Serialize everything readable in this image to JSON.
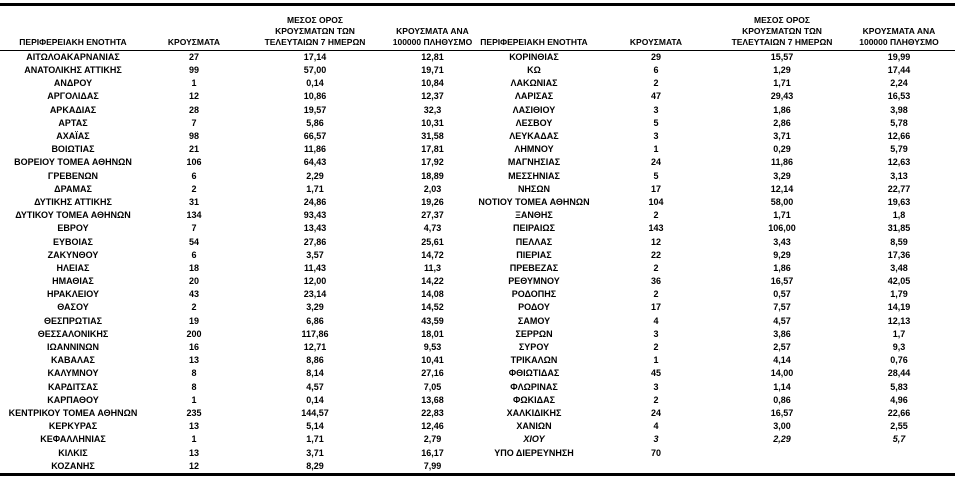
{
  "table": {
    "headers": [
      "ΠΕΡΙΦΕΡΕΙΑΚΗ ΕΝΟΤΗΤΑ",
      "ΚΡΟΥΣΜΑΤΑ",
      "ΜΕΣΟΣ ΟΡΟΣ\nΚΡΟΥΣΜΑΤΩΝ ΤΩΝ\nΤΕΛΕΥΤΑΙΩΝ 7 ΗΜΕΡΩΝ",
      "ΚΡΟΥΣΜΑΤΑ ΑΝΑ\n100000 ΠΛΗΘΥΣΜΟ"
    ],
    "left_rows": [
      {
        "cells": [
          "ΑΙΤΩΛΟΑΚΑΡΝΑΝΙΑΣ",
          "27",
          "17,14",
          "12,81"
        ]
      },
      {
        "cells": [
          "ΑΝΑΤΟΛΙΚΗΣ ΑΤΤΙΚΗΣ",
          "99",
          "57,00",
          "19,71"
        ]
      },
      {
        "cells": [
          "ΑΝΔΡΟΥ",
          "1",
          "0,14",
          "10,84"
        ]
      },
      {
        "cells": [
          "ΑΡΓΟΛΙΔΑΣ",
          "12",
          "10,86",
          "12,37"
        ]
      },
      {
        "cells": [
          "ΑΡΚΑΔΙΑΣ",
          "28",
          "19,57",
          "32,3"
        ]
      },
      {
        "cells": [
          "ΑΡΤΑΣ",
          "7",
          "5,86",
          "10,31"
        ]
      },
      {
        "cells": [
          "ΑΧΑΪΑΣ",
          "98",
          "66,57",
          "31,58"
        ]
      },
      {
        "cells": [
          "ΒΟΙΩΤΙΑΣ",
          "21",
          "11,86",
          "17,81"
        ]
      },
      {
        "cells": [
          "ΒΟΡΕΙΟΥ ΤΟΜΕΑ ΑΘΗΝΩΝ",
          "106",
          "64,43",
          "17,92"
        ]
      },
      {
        "cells": [
          "ΓΡΕΒΕΝΩΝ",
          "6",
          "2,29",
          "18,89"
        ]
      },
      {
        "cells": [
          "ΔΡΑΜΑΣ",
          "2",
          "1,71",
          "2,03"
        ]
      },
      {
        "cells": [
          "ΔΥΤΙΚΗΣ ΑΤΤΙΚΗΣ",
          "31",
          "24,86",
          "19,26"
        ]
      },
      {
        "cells": [
          "ΔΥΤΙΚΟΥ ΤΟΜΕΑ ΑΘΗΝΩΝ",
          "134",
          "93,43",
          "27,37"
        ]
      },
      {
        "cells": [
          "ΕΒΡΟΥ",
          "7",
          "13,43",
          "4,73"
        ]
      },
      {
        "cells": [
          "ΕΥΒΟΙΑΣ",
          "54",
          "27,86",
          "25,61"
        ]
      },
      {
        "cells": [
          "ΖΑΚΥΝΘΟΥ",
          "6",
          "3,57",
          "14,72"
        ]
      },
      {
        "cells": [
          "ΗΛΕΙΑΣ",
          "18",
          "11,43",
          "11,3"
        ]
      },
      {
        "cells": [
          "ΗΜΑΘΙΑΣ",
          "20",
          "12,00",
          "14,22"
        ]
      },
      {
        "cells": [
          "ΗΡΑΚΛΕΙΟΥ",
          "43",
          "23,14",
          "14,08"
        ]
      },
      {
        "cells": [
          "ΘΑΣΟΥ",
          "2",
          "3,29",
          "14,52"
        ]
      },
      {
        "cells": [
          "ΘΕΣΠΡΩΤΙΑΣ",
          "19",
          "6,86",
          "43,59"
        ]
      },
      {
        "cells": [
          "ΘΕΣΣΑΛΟΝΙΚΗΣ",
          "200",
          "117,86",
          "18,01"
        ]
      },
      {
        "cells": [
          "ΙΩΑΝΝΙΝΩΝ",
          "16",
          "12,71",
          "9,53"
        ]
      },
      {
        "cells": [
          "ΚΑΒΑΛΑΣ",
          "13",
          "8,86",
          "10,41"
        ]
      },
      {
        "cells": [
          "ΚΑΛΥΜΝΟΥ",
          "8",
          "8,14",
          "27,16"
        ]
      },
      {
        "cells": [
          "ΚΑΡΔΙΤΣΑΣ",
          "8",
          "4,57",
          "7,05"
        ]
      },
      {
        "cells": [
          "ΚΑΡΠΑΘΟΥ",
          "1",
          "0,14",
          "13,68"
        ]
      },
      {
        "cells": [
          "ΚΕΝΤΡΙΚΟΥ ΤΟΜΕΑ ΑΘΗΝΩΝ",
          "235",
          "144,57",
          "22,83"
        ]
      },
      {
        "cells": [
          "ΚΕΡΚΥΡΑΣ",
          "13",
          "5,14",
          "12,46"
        ]
      },
      {
        "cells": [
          "ΚΕΦΑΛΛΗΝΙΑΣ",
          "1",
          "1,71",
          "2,79"
        ]
      },
      {
        "cells": [
          "ΚΙΛΚΙΣ",
          "13",
          "3,71",
          "16,17"
        ]
      },
      {
        "cells": [
          "ΚΟΖΑΝΗΣ",
          "12",
          "8,29",
          "7,99"
        ]
      }
    ],
    "right_rows": [
      {
        "cells": [
          "ΚΟΡΙΝΘΙΑΣ",
          "29",
          "15,57",
          "19,99"
        ]
      },
      {
        "cells": [
          "ΚΩ",
          "6",
          "1,29",
          "17,44"
        ]
      },
      {
        "cells": [
          "ΛΑΚΩΝΙΑΣ",
          "2",
          "1,71",
          "2,24"
        ]
      },
      {
        "cells": [
          "ΛΑΡΙΣΑΣ",
          "47",
          "29,43",
          "16,53"
        ]
      },
      {
        "cells": [
          "ΛΑΣΙΘΙΟΥ",
          "3",
          "1,86",
          "3,98"
        ]
      },
      {
        "cells": [
          "ΛΕΣΒΟΥ",
          "5",
          "2,86",
          "5,78"
        ]
      },
      {
        "cells": [
          "ΛΕΥΚΑΔΑΣ",
          "3",
          "3,71",
          "12,66"
        ]
      },
      {
        "cells": [
          "ΛΗΜΝΟΥ",
          "1",
          "0,29",
          "5,79"
        ]
      },
      {
        "cells": [
          "ΜΑΓΝΗΣΙΑΣ",
          "24",
          "11,86",
          "12,63"
        ]
      },
      {
        "cells": [
          "ΜΕΣΣΗΝΙΑΣ",
          "5",
          "3,29",
          "3,13"
        ]
      },
      {
        "cells": [
          "ΝΗΣΩΝ",
          "17",
          "12,14",
          "22,77"
        ]
      },
      {
        "cells": [
          "ΝΟΤΙΟΥ ΤΟΜΕΑ ΑΘΗΝΩΝ",
          "104",
          "58,00",
          "19,63"
        ]
      },
      {
        "cells": [
          "ΞΑΝΘΗΣ",
          "2",
          "1,71",
          "1,8"
        ]
      },
      {
        "cells": [
          "ΠΕΙΡΑΙΩΣ",
          "143",
          "106,00",
          "31,85"
        ]
      },
      {
        "cells": [
          "ΠΕΛΛΑΣ",
          "12",
          "3,43",
          "8,59"
        ]
      },
      {
        "cells": [
          "ΠΙΕΡΙΑΣ",
          "22",
          "9,29",
          "17,36"
        ]
      },
      {
        "cells": [
          "ΠΡΕΒΕΖΑΣ",
          "2",
          "1,86",
          "3,48"
        ]
      },
      {
        "cells": [
          "ΡΕΘΥΜΝΟΥ",
          "36",
          "16,57",
          "42,05"
        ]
      },
      {
        "cells": [
          "ΡΟΔΟΠΗΣ",
          "2",
          "0,57",
          "1,79"
        ]
      },
      {
        "cells": [
          "ΡΟΔΟΥ",
          "17",
          "7,57",
          "14,19"
        ]
      },
      {
        "cells": [
          "ΣΑΜΟΥ",
          "4",
          "4,57",
          "12,13"
        ]
      },
      {
        "cells": [
          "ΣΕΡΡΩΝ",
          "3",
          "3,86",
          "1,7"
        ]
      },
      {
        "cells": [
          "ΣΥΡΟΥ",
          "2",
          "2,57",
          "9,3"
        ]
      },
      {
        "cells": [
          "ΤΡΙΚΑΛΩΝ",
          "1",
          "4,14",
          "0,76"
        ]
      },
      {
        "cells": [
          "ΦΘΙΩΤΙΔΑΣ",
          "45",
          "14,00",
          "28,44"
        ]
      },
      {
        "cells": [
          "ΦΛΩΡΙΝΑΣ",
          "3",
          "1,14",
          "5,83"
        ]
      },
      {
        "cells": [
          "ΦΩΚΙΔΑΣ",
          "2",
          "0,86",
          "4,96"
        ]
      },
      {
        "cells": [
          "ΧΑΛΚΙΔΙΚΗΣ",
          "24",
          "16,57",
          "22,66"
        ]
      },
      {
        "cells": [
          "ΧΑΝΙΩΝ",
          "4",
          "3,00",
          "2,55"
        ]
      },
      {
        "cells": [
          "ΧΙΟΥ",
          "3",
          "2,29",
          "5,7"
        ],
        "style": "italic"
      },
      {
        "cells": [
          "ΥΠΟ ΔΙΕΡΕΥΝΗΣΗ",
          "70",
          "",
          ""
        ]
      }
    ]
  }
}
